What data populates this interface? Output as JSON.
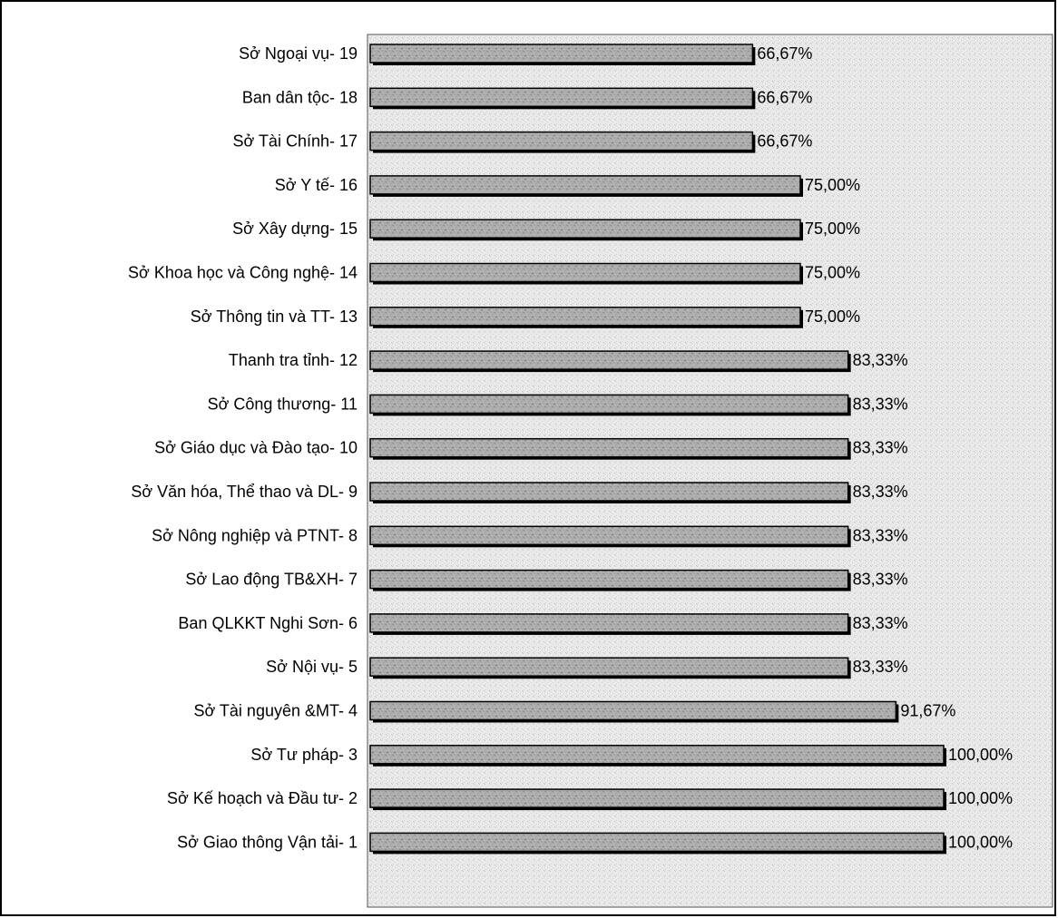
{
  "chart_data": {
    "type": "bar",
    "orientation": "horizontal",
    "categories": [
      "Sở Ngoại vụ- 19",
      "Ban dân tộc- 18",
      "Sở Tài Chính- 17",
      "Sở Y tế- 16",
      "Sở Xây dựng- 15",
      "Sở Khoa học và Công nghệ- 14",
      "Sở Thông tin và TT- 13",
      "Thanh tra tỉnh- 12",
      "Sở Công thương- 11",
      "Sở Giáo dục và Đào tạo- 10",
      "Sở Văn hóa, Thể thao và DL- 9",
      "Sở Nông nghiệp và PTNT- 8",
      "Sở Lao động TB&XH- 7",
      "Ban QLKKT Nghi Sơn- 6",
      "Sở Nội vụ- 5",
      "Sở Tài nguyên &MT- 4",
      "Sở Tư pháp- 3",
      "Sở Kế hoạch và Đầu tư- 2",
      "Sở Giao thông Vận tải- 1"
    ],
    "values": [
      66.67,
      66.67,
      66.67,
      75.0,
      75.0,
      75.0,
      75.0,
      83.33,
      83.33,
      83.33,
      83.33,
      83.33,
      83.33,
      83.33,
      83.33,
      91.67,
      100.0,
      100.0,
      100.0
    ],
    "value_labels": [
      "66,67%",
      "66,67%",
      "66,67%",
      "75,00%",
      "75,00%",
      "75,00%",
      "75,00%",
      "83,33%",
      "83,33%",
      "83,33%",
      "83,33%",
      "83,33%",
      "83,33%",
      "83,33%",
      "83,33%",
      "91,67%",
      "100,00%",
      "100,00%",
      "100,00%"
    ],
    "xlim": [
      0,
      100
    ],
    "grid": false,
    "legend": "none",
    "colors": {
      "bar_fill": "#a9a9a9",
      "bar_shadow": "#000000",
      "plot_background": "#e6e6e6",
      "frame": "#000000"
    }
  }
}
